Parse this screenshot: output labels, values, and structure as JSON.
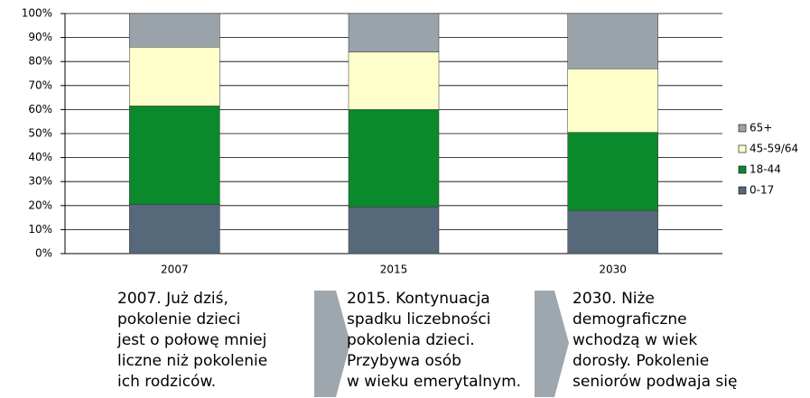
{
  "chart_data": {
    "type": "stacked-bar",
    "categories": [
      "2007",
      "2015",
      "2030"
    ],
    "series": [
      {
        "name": "0-17",
        "color": "#56697a",
        "values": [
          20.5,
          19.5,
          18
        ]
      },
      {
        "name": "18-44",
        "color": "#0a8a2a",
        "values": [
          41,
          40.5,
          32.5
        ]
      },
      {
        "name": "45-59/64",
        "color": "#ffffcc",
        "values": [
          24.5,
          24,
          26.5
        ]
      },
      {
        "name": "65+",
        "color": "#9aa3aa",
        "values": [
          14,
          16,
          23
        ]
      }
    ],
    "ylim": [
      0,
      100
    ],
    "yticks": [
      {
        "value": 0,
        "label": "0%"
      },
      {
        "value": 10,
        "label": "10%"
      },
      {
        "value": 20,
        "label": "20%"
      },
      {
        "value": 30,
        "label": "30%"
      },
      {
        "value": 40,
        "label": "40%"
      },
      {
        "value": 50,
        "label": "50%"
      },
      {
        "value": 60,
        "label": "60%"
      },
      {
        "value": 70,
        "label": "70%"
      },
      {
        "value": 80,
        "label": "80%"
      },
      {
        "value": 90,
        "label": "90%"
      },
      {
        "value": 100,
        "label": "100%"
      }
    ],
    "grid": true,
    "legend": "right"
  },
  "captions": [
    [
      "2007. Już dziś,",
      "pokolenie dzieci",
      "jest o połowę mniej",
      "liczne niż pokolenie",
      "ich rodziców."
    ],
    [
      "2015. Kontynuacja",
      "spadku liczebności",
      "pokolenia dzieci.",
      "Przybywa osób",
      "w wieku emerytalnym."
    ],
    [
      "2030. Niże",
      "demograficzne",
      "wchodzą w wiek",
      "dorosły. Pokolenie",
      "seniorów podwaja się"
    ]
  ]
}
